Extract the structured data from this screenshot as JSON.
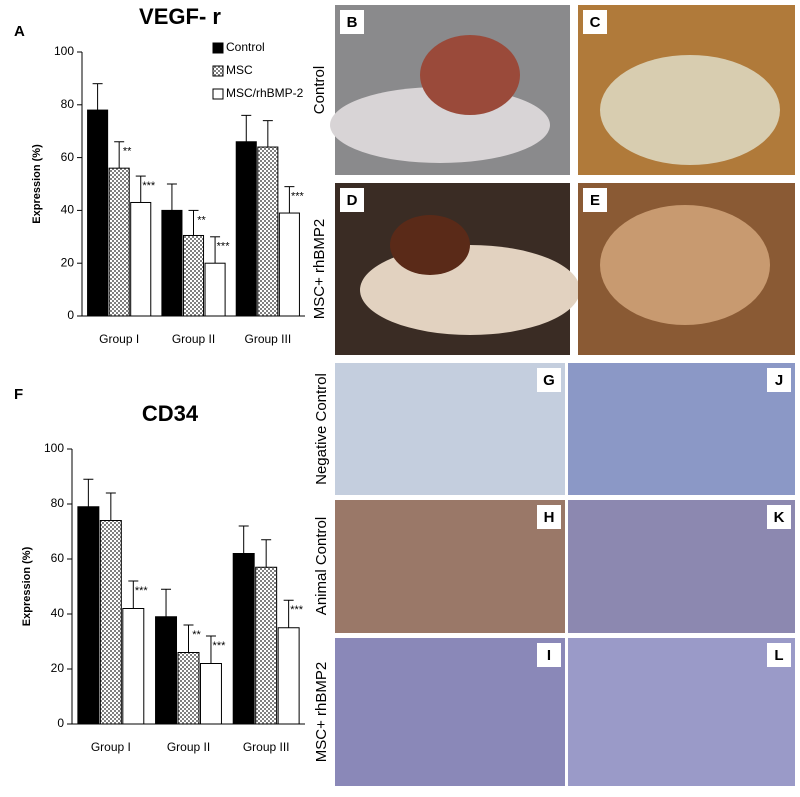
{
  "chart_data": [
    {
      "type": "bar",
      "panel": "A",
      "title": "VEGF- r",
      "y_label": "Expression (%)",
      "categories": [
        "Group I",
        "Group II",
        "Group III"
      ],
      "series": [
        {
          "name": "Control",
          "color": "#000000",
          "values": [
            78,
            40,
            66
          ],
          "errors": [
            10,
            10,
            10
          ]
        },
        {
          "name": "MSC",
          "color": "#808080",
          "pattern": "checker",
          "values": [
            56,
            30.5,
            64
          ],
          "errors": [
            10,
            9.5,
            10
          ],
          "annotations": [
            "**",
            "**",
            null
          ]
        },
        {
          "name": "MSC/rhBMP-2",
          "color": "#ffffff",
          "values": [
            43,
            20,
            39
          ],
          "errors": [
            10,
            10,
            10
          ],
          "annotations": [
            "***",
            "***",
            "***"
          ]
        }
      ],
      "ylim": [
        0,
        100
      ],
      "yticks": [
        0,
        20,
        40,
        60,
        80,
        100
      ],
      "legend": "upper right"
    },
    {
      "type": "bar",
      "panel": "F",
      "title": "CD34",
      "y_label": "Expression (%)",
      "categories": [
        "Group I",
        "Group II",
        "Group III"
      ],
      "series": [
        {
          "color": "#000000",
          "values": [
            79,
            39,
            62
          ],
          "errors": [
            10,
            10,
            10
          ]
        },
        {
          "color": "#808080",
          "pattern": "checker",
          "values": [
            74,
            26,
            57
          ],
          "errors": [
            10,
            10,
            10
          ],
          "annotations": [
            null,
            "**",
            null
          ]
        },
        {
          "color": "#ffffff",
          "values": [
            42,
            22,
            35
          ],
          "errors": [
            10,
            10,
            10
          ],
          "annotations": [
            "***",
            "***",
            "***"
          ]
        }
      ],
      "ylim": [
        0,
        100
      ],
      "yticks": [
        0,
        20,
        40,
        60,
        80,
        100
      ]
    }
  ],
  "photos": {
    "labels": [
      "B",
      "C",
      "D",
      "E",
      "G",
      "J",
      "H",
      "K",
      "I",
      "L"
    ],
    "rows": [
      "Control",
      "MSC+ rhBMP2",
      "Negative Control",
      "Animal Control",
      "MSC+ rhBMP2"
    ]
  }
}
